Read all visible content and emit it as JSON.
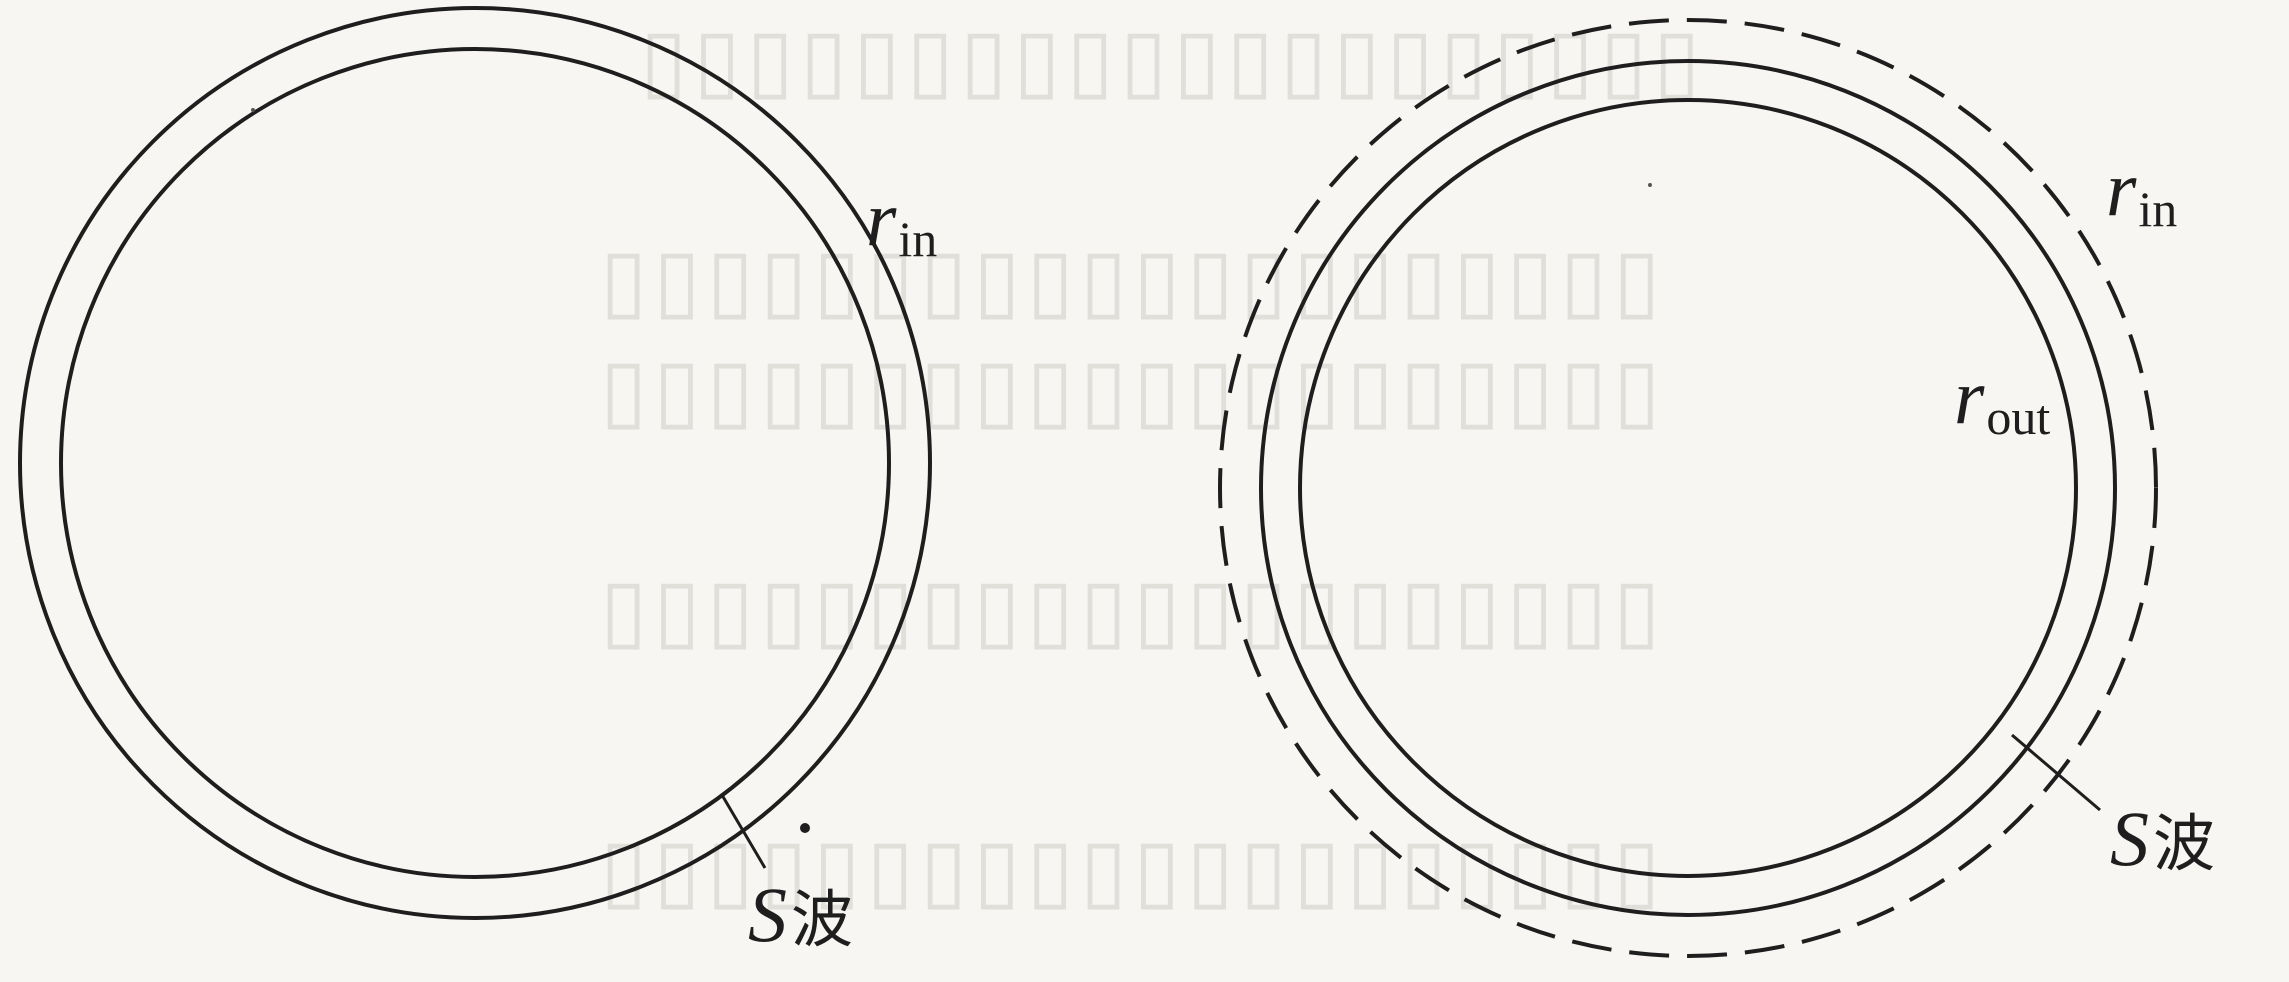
{
  "diagrams": [
    {
      "labels": {
        "r_in": {
          "symbol": "r",
          "subscript": "in"
        },
        "s_wave": {
          "symbol": "S",
          "text": "波"
        }
      }
    },
    {
      "labels": {
        "r_in": {
          "symbol": "r",
          "subscript": "in"
        },
        "r_out": {
          "symbol": "r",
          "subscript": "out"
        },
        "s_wave": {
          "symbol": "S",
          "text": "波"
        }
      }
    }
  ],
  "colors": {
    "ink": "#1e1e1e",
    "paper": "#f7f6f2",
    "bleed_through": "#cfcdc8"
  }
}
